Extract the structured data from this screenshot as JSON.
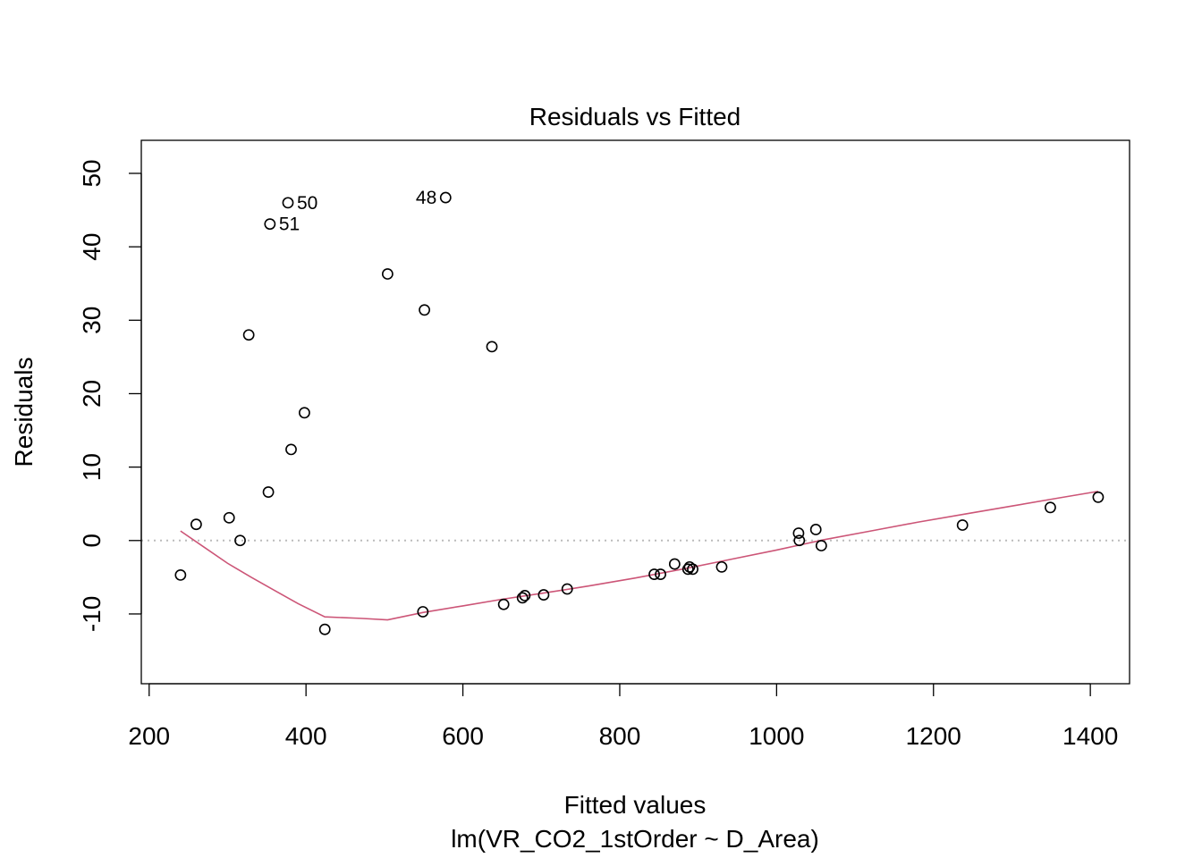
{
  "chart_data": {
    "type": "scatter",
    "title": "Residuals vs Fitted",
    "xlabel": "Fitted values",
    "subtitle": "lm(VR_CO2_1stOrder ~ D_Area)",
    "ylabel": "Residuals",
    "xlim": [
      190,
      1450
    ],
    "ylim": [
      -19.5,
      54.5
    ],
    "x_ticks": [
      200,
      400,
      600,
      800,
      1000,
      1200,
      1400
    ],
    "x_tick_labels": [
      "200",
      "400",
      "600",
      "800",
      "1000",
      "1200",
      "1400"
    ],
    "y_ticks": [
      -10,
      0,
      10,
      20,
      30,
      40,
      50
    ],
    "y_tick_labels": [
      "-10",
      "0",
      "10",
      "20",
      "30",
      "40",
      "50"
    ],
    "reference_line": {
      "y": 0,
      "style": "dotted",
      "color": "#bbbbbb"
    },
    "points": [
      {
        "x": 240,
        "y": -4.7
      },
      {
        "x": 260,
        "y": 2.2
      },
      {
        "x": 302,
        "y": 3.1
      },
      {
        "x": 316,
        "y": 0.0
      },
      {
        "x": 327,
        "y": 28.0
      },
      {
        "x": 352,
        "y": 6.6
      },
      {
        "x": 354,
        "y": 43.1,
        "label": "51"
      },
      {
        "x": 377,
        "y": 46.0,
        "label": "50"
      },
      {
        "x": 381,
        "y": 12.4
      },
      {
        "x": 398,
        "y": 17.4
      },
      {
        "x": 424,
        "y": -12.1
      },
      {
        "x": 504,
        "y": 36.3
      },
      {
        "x": 549,
        "y": -9.7
      },
      {
        "x": 551,
        "y": 31.4
      },
      {
        "x": 578,
        "y": 46.7,
        "label": "48"
      },
      {
        "x": 637,
        "y": 26.4
      },
      {
        "x": 652,
        "y": -8.7
      },
      {
        "x": 676,
        "y": -7.8
      },
      {
        "x": 679,
        "y": -7.5
      },
      {
        "x": 703,
        "y": -7.4
      },
      {
        "x": 733,
        "y": -6.6
      },
      {
        "x": 844,
        "y": -4.6
      },
      {
        "x": 852,
        "y": -4.6
      },
      {
        "x": 870,
        "y": -3.2
      },
      {
        "x": 887,
        "y": -3.9
      },
      {
        "x": 889,
        "y": -3.6
      },
      {
        "x": 893,
        "y": -3.9
      },
      {
        "x": 930,
        "y": -3.6
      },
      {
        "x": 1028,
        "y": 1.0
      },
      {
        "x": 1029,
        "y": 0.0
      },
      {
        "x": 1050,
        "y": 1.5
      },
      {
        "x": 1057,
        "y": -0.7
      },
      {
        "x": 1237,
        "y": 2.1
      },
      {
        "x": 1349,
        "y": 4.5
      },
      {
        "x": 1410,
        "y": 5.9
      }
    ],
    "smooth_line": {
      "color": "#cc5577",
      "x": [
        240,
        270,
        300,
        330,
        360,
        390,
        424,
        470,
        504,
        549,
        600,
        650,
        700,
        760,
        820,
        880,
        940,
        1000,
        1060,
        1120,
        1180,
        1240,
        1300,
        1360,
        1410
      ],
      "y": [
        1.3,
        -0.9,
        -3.1,
        -5.0,
        -6.8,
        -8.6,
        -10.4,
        -10.6,
        -10.8,
        -9.8,
        -8.9,
        -8.0,
        -7.2,
        -6.2,
        -5.1,
        -3.9,
        -2.6,
        -1.3,
        0.1,
        1.3,
        2.5,
        3.6,
        4.7,
        5.8,
        6.7
      ]
    }
  }
}
